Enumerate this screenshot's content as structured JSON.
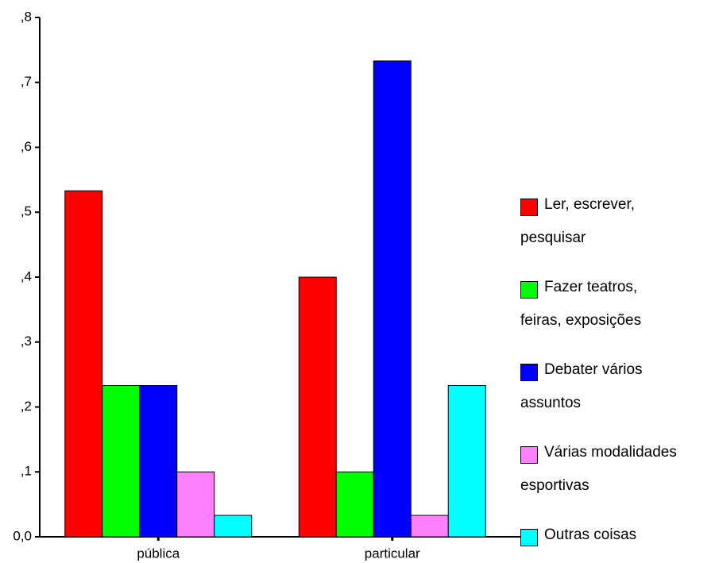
{
  "chart_data": {
    "type": "bar",
    "categories": [
      "pública",
      "particular"
    ],
    "series": [
      {
        "name": "Ler, escrever, pesquisar",
        "color": "#ff0000",
        "values": [
          0.533,
          0.4
        ]
      },
      {
        "name": "Fazer teatros, feiras, exposições",
        "color": "#00ff00",
        "values": [
          0.233,
          0.1
        ]
      },
      {
        "name": "Debater vários assuntos",
        "color": "#0000ff",
        "values": [
          0.233,
          0.733
        ]
      },
      {
        "name": "Várias modalidades esportivas",
        "color": "#ff80ff",
        "values": [
          0.1,
          0.033
        ]
      },
      {
        "name": "Outras coisas",
        "color": "#00ffff",
        "values": [
          0.033,
          0.233
        ]
      }
    ],
    "ylim": [
      0,
      0.8
    ],
    "yticks": [
      {
        "value": 0,
        "label": "0,0"
      },
      {
        "value": 0.1,
        "label": ",1"
      },
      {
        "value": 0.2,
        "label": ",2"
      },
      {
        "value": 0.3,
        "label": ",3"
      },
      {
        "value": 0.4,
        "label": ",4"
      },
      {
        "value": 0.5,
        "label": ",5"
      },
      {
        "value": 0.6,
        "label": ",6"
      },
      {
        "value": 0.7,
        "label": ",7"
      },
      {
        "value": 0.8,
        "label": ",8"
      }
    ],
    "legend": "right"
  }
}
